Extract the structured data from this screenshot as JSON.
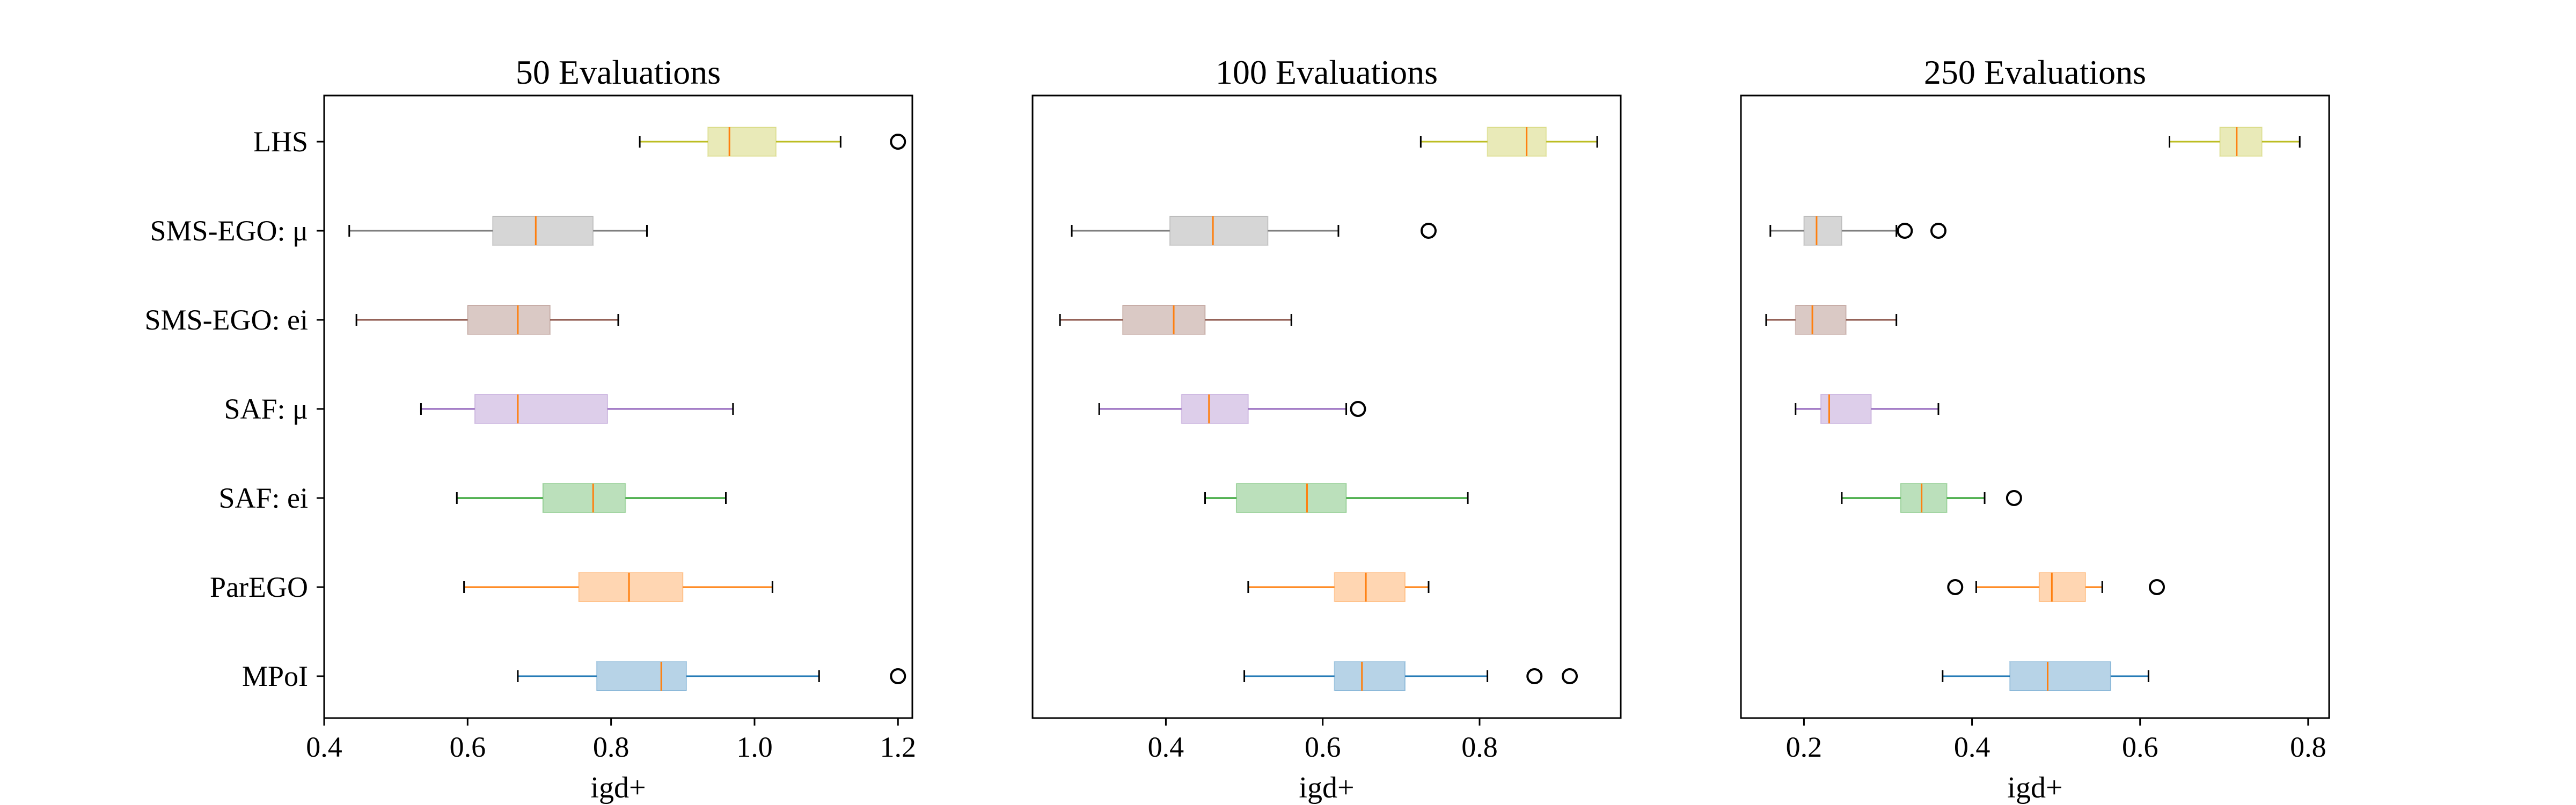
{
  "chart_data": [
    {
      "type": "boxplot",
      "title": "50 Evaluations",
      "xlabel": "igd+",
      "xlim": [
        0.4,
        1.22
      ],
      "xticks": [
        "0.4",
        "0.6",
        "0.8",
        "1.0",
        "1.2"
      ],
      "categories": [
        "LHS",
        "SMS-EGO: μ",
        "SMS-EGO: ei",
        "SAF: μ",
        "SAF: ei",
        "ParEGO",
        "MPoI"
      ],
      "boxes": [
        {
          "name": "LHS",
          "whislo": 0.84,
          "q1": 0.935,
          "med": 0.965,
          "q3": 1.03,
          "whishi": 1.12,
          "fliers": [
            1.2
          ]
        },
        {
          "name": "SMS-EGO: μ",
          "whislo": 0.435,
          "q1": 0.635,
          "med": 0.695,
          "q3": 0.775,
          "whishi": 0.85,
          "fliers": []
        },
        {
          "name": "SMS-EGO: ei",
          "whislo": 0.445,
          "q1": 0.6,
          "med": 0.67,
          "q3": 0.715,
          "whishi": 0.81,
          "fliers": []
        },
        {
          "name": "SAF: μ",
          "whislo": 0.535,
          "q1": 0.61,
          "med": 0.67,
          "q3": 0.795,
          "whishi": 0.97,
          "fliers": []
        },
        {
          "name": "SAF: ei",
          "whislo": 0.585,
          "q1": 0.705,
          "med": 0.775,
          "q3": 0.82,
          "whishi": 0.96,
          "fliers": []
        },
        {
          "name": "ParEGO",
          "whislo": 0.595,
          "q1": 0.755,
          "med": 0.825,
          "q3": 0.9,
          "whishi": 1.025,
          "fliers": []
        },
        {
          "name": "MPoI",
          "whislo": 0.67,
          "q1": 0.78,
          "med": 0.87,
          "q3": 0.905,
          "whishi": 1.09,
          "fliers": [
            1.2
          ]
        }
      ]
    },
    {
      "type": "boxplot",
      "title": "100 Evaluations",
      "xlabel": "igd+",
      "xlim": [
        0.23,
        0.98
      ],
      "xticks": [
        "0.4",
        "0.6",
        "0.8"
      ],
      "categories": [
        "LHS",
        "SMS-EGO: μ",
        "SMS-EGO: ei",
        "SAF: μ",
        "SAF: ei",
        "ParEGO",
        "MPoI"
      ],
      "boxes": [
        {
          "name": "LHS",
          "whislo": 0.725,
          "q1": 0.81,
          "med": 0.86,
          "q3": 0.885,
          "whishi": 0.95,
          "fliers": []
        },
        {
          "name": "SMS-EGO: μ",
          "whislo": 0.28,
          "q1": 0.405,
          "med": 0.46,
          "q3": 0.53,
          "whishi": 0.62,
          "fliers": [
            0.735
          ]
        },
        {
          "name": "SMS-EGO: ei",
          "whislo": 0.265,
          "q1": 0.345,
          "med": 0.41,
          "q3": 0.45,
          "whishi": 0.56,
          "fliers": []
        },
        {
          "name": "SAF: μ",
          "whislo": 0.315,
          "q1": 0.42,
          "med": 0.455,
          "q3": 0.505,
          "whishi": 0.63,
          "fliers": [
            0.645
          ]
        },
        {
          "name": "SAF: ei",
          "whislo": 0.45,
          "q1": 0.49,
          "med": 0.58,
          "q3": 0.63,
          "whishi": 0.785,
          "fliers": []
        },
        {
          "name": "ParEGO",
          "whislo": 0.505,
          "q1": 0.615,
          "med": 0.655,
          "q3": 0.705,
          "whishi": 0.735,
          "fliers": []
        },
        {
          "name": "MPoI",
          "whislo": 0.5,
          "q1": 0.615,
          "med": 0.65,
          "q3": 0.705,
          "whishi": 0.81,
          "fliers": [
            0.87,
            0.915
          ]
        }
      ]
    },
    {
      "type": "boxplot",
      "title": "250 Evaluations",
      "xlabel": "igd+",
      "xlim": [
        0.125,
        0.825
      ],
      "xticks": [
        "0.2",
        "0.4",
        "0.6",
        "0.8"
      ],
      "categories": [
        "LHS",
        "SMS-EGO: μ",
        "SMS-EGO: ei",
        "SAF: μ",
        "SAF: ei",
        "ParEGO",
        "MPoI"
      ],
      "boxes": [
        {
          "name": "LHS",
          "whislo": 0.635,
          "q1": 0.695,
          "med": 0.715,
          "q3": 0.745,
          "whishi": 0.79,
          "fliers": []
        },
        {
          "name": "SMS-EGO: μ",
          "whislo": 0.16,
          "q1": 0.2,
          "med": 0.215,
          "q3": 0.245,
          "whishi": 0.31,
          "fliers": [
            0.32,
            0.36
          ]
        },
        {
          "name": "SMS-EGO: ei",
          "whislo": 0.155,
          "q1": 0.19,
          "med": 0.21,
          "q3": 0.25,
          "whishi": 0.31,
          "fliers": []
        },
        {
          "name": "SAF: μ",
          "whislo": 0.19,
          "q1": 0.22,
          "med": 0.23,
          "q3": 0.28,
          "whishi": 0.36,
          "fliers": []
        },
        {
          "name": "SAF: ei",
          "whislo": 0.245,
          "q1": 0.315,
          "med": 0.34,
          "q3": 0.37,
          "whishi": 0.415,
          "fliers": [
            0.45
          ]
        },
        {
          "name": "ParEGO",
          "whislo": 0.405,
          "q1": 0.48,
          "med": 0.495,
          "q3": 0.535,
          "whishi": 0.555,
          "fliers": [
            0.38,
            0.62
          ]
        },
        {
          "name": "MPoI",
          "whislo": 0.365,
          "q1": 0.445,
          "med": 0.49,
          "q3": 0.565,
          "whishi": 0.61,
          "fliers": []
        }
      ]
    }
  ],
  "colors": {
    "LHS": "#bcbd22",
    "SMS-EGO: μ": "#7f7f7f",
    "SMS-EGO: ei": "#8c564b",
    "SAF: μ": "#9467bd",
    "SAF: ei": "#2ca02c",
    "ParEGO": "#ff7f0e",
    "MPoI": "#1f77b4",
    "median": "#ff7f0e"
  }
}
